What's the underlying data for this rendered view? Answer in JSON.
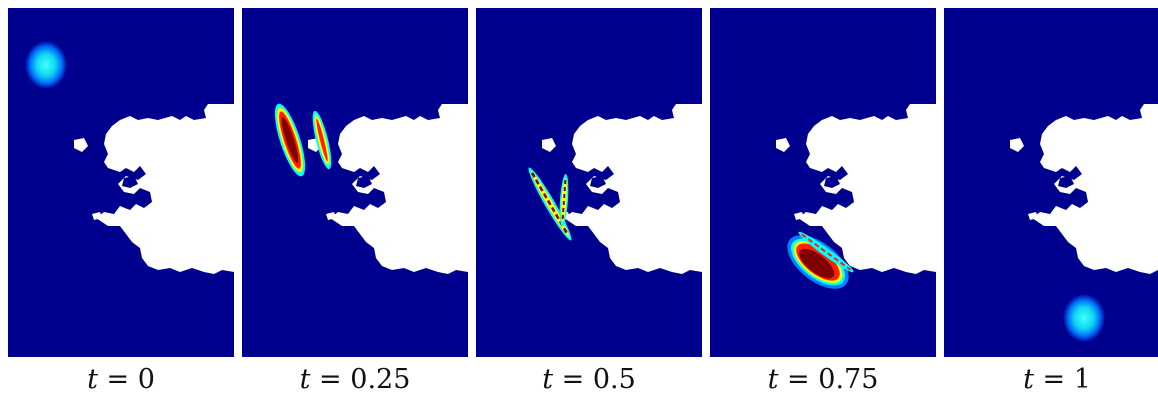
{
  "figure": {
    "panels": [
      {
        "id": "p0",
        "label_var": "t",
        "label_eq": " = ",
        "label_val": "0"
      },
      {
        "id": "p1",
        "label_var": "t",
        "label_eq": " = ",
        "label_val": "0.25"
      },
      {
        "id": "p2",
        "label_var": "t",
        "label_eq": " = ",
        "label_val": "0.5"
      },
      {
        "id": "p3",
        "label_var": "t",
        "label_eq": " = ",
        "label_val": "0.75"
      },
      {
        "id": "p4",
        "label_var": "t",
        "label_eq": " = ",
        "label_val": "1"
      }
    ],
    "colors": {
      "background": "#00008f",
      "land": "#ffffff",
      "colormap": [
        "#00008f",
        "#0000ff",
        "#00ffff",
        "#ffff00",
        "#ff0000",
        "#800000"
      ]
    }
  }
}
